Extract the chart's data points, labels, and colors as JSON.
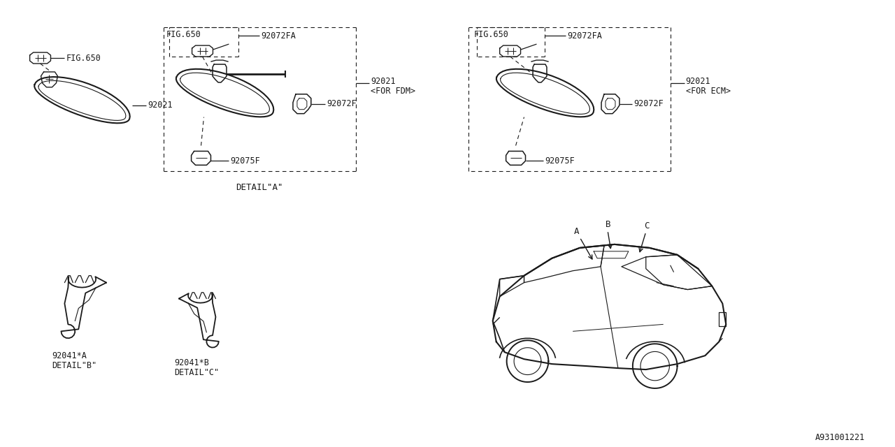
{
  "bg_color": "#ffffff",
  "line_color": "#1a1a1a",
  "diagram_id": "A931001221",
  "font": "monospace",
  "font_size": 8.5,
  "lw_main": 1.3,
  "lw_thin": 0.8,
  "lw_dash": 0.8,
  "labels": {
    "fig650": "FIG.650",
    "for_fdm": "<FOR FDM>",
    "for_ecm": "<FOR ECM>",
    "detail_a": "DETAIL\"A\"",
    "detail_b": "DETAIL\"B\"",
    "detail_c": "DETAIL\"C\"",
    "p92021": "92021",
    "p92072f": "92072F",
    "p92072fa": "92072FA",
    "p92075f": "92075F",
    "p92041a": "92041*A",
    "p92041b": "92041*B"
  }
}
